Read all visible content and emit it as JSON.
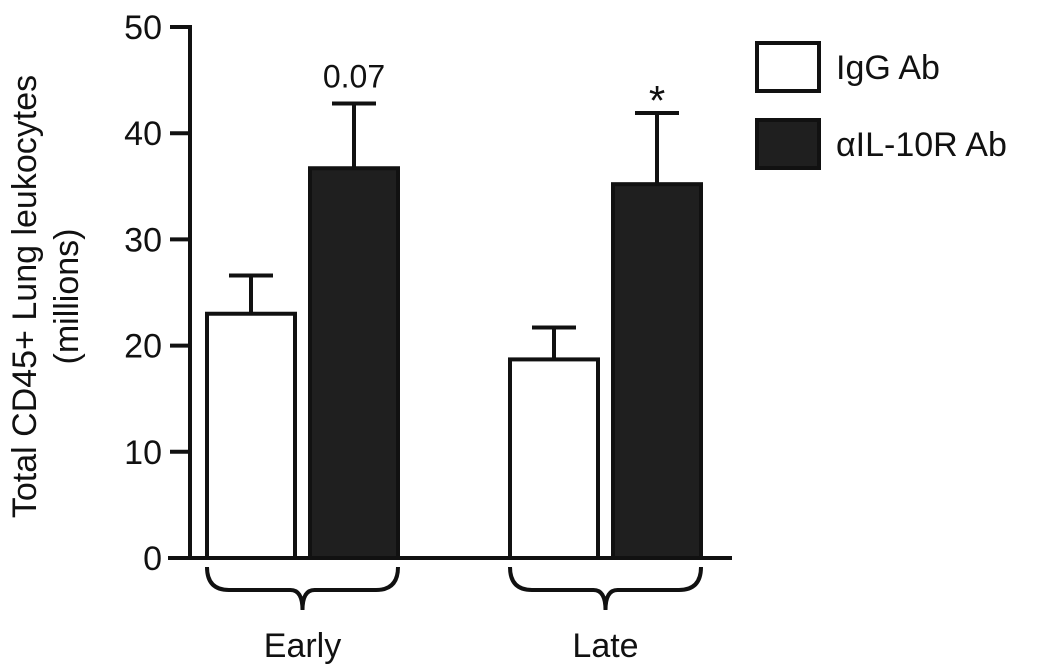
{
  "chart_data": {
    "type": "bar",
    "ylabel_line1": "Total CD45+ Lung leukocytes",
    "ylabel_line2": "(millions)",
    "xlabel": "",
    "ylim": [
      0,
      50
    ],
    "yticks": [
      0,
      10,
      20,
      30,
      40,
      50
    ],
    "categories": [
      "Early",
      "Late"
    ],
    "series": [
      {
        "name": "IgG Ab",
        "values": [
          23,
          18.7
        ],
        "errors": [
          3.6,
          3.0
        ],
        "color": "#ffffff"
      },
      {
        "name": "αIL-10R Ab",
        "values": [
          36.7,
          35.2
        ],
        "errors": [
          6.1,
          6.7
        ],
        "color": "#1f1f1f"
      }
    ],
    "annotations": [
      {
        "category": "Early",
        "series": 1,
        "text": "0.07"
      },
      {
        "category": "Late",
        "series": 1,
        "text": "*"
      }
    ],
    "legend_position": "top-right",
    "grid": false
  }
}
